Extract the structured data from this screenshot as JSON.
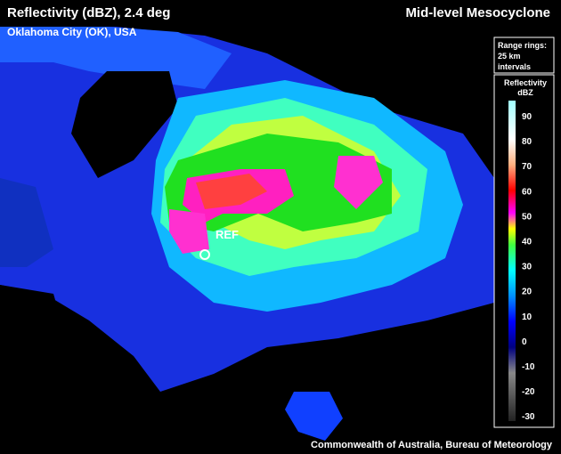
{
  "header": {
    "title": "Reflectivity (dBZ), 2.4 deg",
    "product": "Mid-level Mesocyclone",
    "location": "Oklahoma City (OK), USA"
  },
  "range_rings": {
    "lines": [
      "Range rings:",
      "25 km",
      "intervals"
    ]
  },
  "legend": {
    "title_lines": [
      "Reflectivity",
      "dBZ"
    ],
    "ticks": [
      90,
      80,
      70,
      60,
      50,
      40,
      30,
      20,
      10,
      0,
      -10,
      -20,
      -30
    ]
  },
  "annotation": {
    "label": "REF"
  },
  "footer": {
    "credit": "Commonwealth of Australia, Bureau of Meteorology"
  }
}
